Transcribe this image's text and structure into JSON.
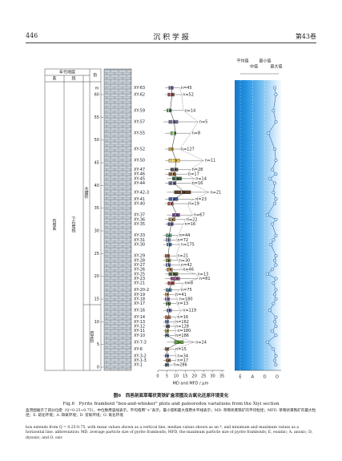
{
  "header": {
    "page": "446",
    "journal": "沉 积 学 报",
    "volume": "第43卷"
  },
  "figure": {
    "strat_header": {
      "group": "年代地层",
      "col1": "系",
      "col2": "统",
      "col3": "阶"
    },
    "strat": {
      "system": "石炭系",
      "series": "下石炭统",
      "stage_upper": "大塘阶",
      "stage_lower": "岩关阶"
    },
    "depth_unit": "m",
    "ylim": [
      0,
      60
    ],
    "yticks": [
      0,
      5,
      10,
      15,
      20,
      25,
      30,
      35,
      40,
      45,
      50,
      55,
      60
    ],
    "xlim": [
      0,
      35
    ],
    "xticks": [
      0,
      5,
      10,
      15,
      20,
      25,
      30,
      35
    ],
    "x_label": "MD and MFD / μm",
    "redox_lim": [
      0,
      3
    ],
    "redox_ticks": [
      {
        "value": 0,
        "label": "E"
      },
      {
        "value": 1,
        "label": "A"
      },
      {
        "value": 2,
        "label": "D"
      },
      {
        "value": 3,
        "label": "O"
      }
    ],
    "legend": [
      "平均值",
      "中值",
      "最小值",
      "最大值"
    ],
    "samples": [
      {
        "id": "XY-63",
        "d": 61.5,
        "min": 4,
        "q1": 6,
        "med": 7,
        "q3": 8.5,
        "max": 12,
        "mean": 7.5,
        "n": "n=45",
        "color": "#6b5a9a",
        "redox": 2.8
      },
      {
        "id": "XY-62",
        "d": 60,
        "min": 4,
        "q1": 5.5,
        "med": 7,
        "q3": 9,
        "max": 13,
        "mean": 7.8,
        "n": "n=52",
        "color": "#8a4a4a",
        "redox": 2.9
      },
      {
        "id": "XY-59",
        "d": 56.5,
        "min": 3,
        "q1": 5,
        "med": 6,
        "q3": 7.5,
        "max": 14,
        "mean": 6.8,
        "n": "n=14",
        "color": "#4a8a5a",
        "redox": 2.7
      },
      {
        "id": "XY-57",
        "d": 54,
        "min": 3,
        "q1": 6,
        "med": 8,
        "q3": 11,
        "max": 22,
        "mean": 9,
        "n": "n=5",
        "color": "#6a6a9a",
        "redox": 2.9
      },
      {
        "id": "XY-55",
        "d": 51.5,
        "min": 4,
        "q1": 7,
        "med": 8.5,
        "q3": 10,
        "max": 18,
        "mean": 9.5,
        "n": "n=8",
        "color": "#7ab06a",
        "redox": 2.3
      },
      {
        "id": "XY-52",
        "d": 48,
        "min": 4,
        "q1": 6,
        "med": 7.5,
        "q3": 8.5,
        "max": 12,
        "mean": 7.7,
        "n": "n=127",
        "color": "#c0a040",
        "redox": 2.8
      },
      {
        "id": "XY-50",
        "d": 45.5,
        "min": 4,
        "q1": 6,
        "med": 8,
        "q3": 12,
        "max": 25,
        "mean": 10,
        "n": "n=11",
        "color": "#e0c050",
        "redox": 2.9
      },
      {
        "id": "XY-47",
        "d": 43.5,
        "min": 4,
        "q1": 7,
        "med": 9,
        "q3": 11,
        "max": 18,
        "mean": 9.5,
        "n": "n=28",
        "color": "#505050",
        "redox": 2.6
      },
      {
        "id": "XY-46",
        "d": 42.5,
        "min": 4,
        "q1": 6,
        "med": 8,
        "q3": 10,
        "max": 16,
        "mean": 8.5,
        "n": "n=17",
        "color": "#8a6030",
        "redox": 2.9
      },
      {
        "id": "XY-45",
        "d": 41.5,
        "min": 5,
        "q1": 8,
        "med": 10,
        "q3": 13,
        "max": 20,
        "mean": 11,
        "n": "n=14",
        "color": "#306040",
        "redox": 2.4
      },
      {
        "id": "XY-44",
        "d": 40.5,
        "min": 4,
        "q1": 6,
        "med": 8,
        "q3": 10,
        "max": 18,
        "mean": 9,
        "n": "n=16",
        "color": "#606090",
        "redox": 2.8
      },
      {
        "id": "XY-42-3",
        "d": 38.5,
        "min": 5,
        "q1": 9,
        "med": 13,
        "q3": 18,
        "max": 28,
        "mean": 14.5,
        "n": "n=21",
        "color": "#5a4030",
        "redox": 2.7
      },
      {
        "id": "XY-41",
        "d": 37,
        "min": 4,
        "q1": 6,
        "med": 8,
        "q3": 11,
        "max": 20,
        "mean": 9,
        "n": "n=23",
        "color": "#4060a0",
        "redox": 2.9
      },
      {
        "id": "XY-40",
        "d": 36,
        "min": 4,
        "q1": 5.5,
        "med": 7,
        "q3": 8.5,
        "max": 16,
        "mean": 7.5,
        "n": "n=19",
        "color": "#a05050",
        "redox": 2.8
      },
      {
        "id": "XY-37",
        "d": 33.5,
        "min": 5,
        "q1": 8,
        "med": 10,
        "q3": 12,
        "max": 19,
        "mean": 10.5,
        "n": "n=67",
        "color": "#6a4a8a",
        "redox": 2.2
      },
      {
        "id": "XY-36",
        "d": 32.5,
        "min": 4,
        "q1": 6,
        "med": 7.5,
        "q3": 9.5,
        "max": 15,
        "mean": 8,
        "n": "n=22",
        "color": "#a08050",
        "redox": 2.9
      },
      {
        "id": "XY-35",
        "d": 31.5,
        "min": 4,
        "q1": 5.5,
        "med": 7,
        "q3": 8.5,
        "max": 14,
        "mean": 7.4,
        "n": "n=16",
        "color": "#505080",
        "redox": 2.6
      },
      {
        "id": "XY-33",
        "d": 29,
        "min": 3,
        "q1": 4.5,
        "med": 6,
        "q3": 7.5,
        "max": 11,
        "mean": 6.2,
        "n": "n=44",
        "color": "#60a080",
        "redox": 2.9
      },
      {
        "id": "XY-31",
        "d": 28,
        "min": 3,
        "q1": 4.5,
        "med": 5.5,
        "q3": 7,
        "max": 10,
        "mean": 5.8,
        "n": "n=72",
        "color": "#8090c0",
        "redox": 2.7
      },
      {
        "id": "XY-30",
        "d": 27,
        "min": 3,
        "q1": 5,
        "med": 6,
        "q3": 7.5,
        "max": 12,
        "mean": 6.4,
        "n": "n=175",
        "color": "#4070a0",
        "redox": 2.5
      },
      {
        "id": "XY-29",
        "d": 24.5,
        "min": 3,
        "q1": 4,
        "med": 5.5,
        "q3": 6.5,
        "max": 10,
        "mean": 5.6,
        "n": "n=21",
        "color": "#a06040",
        "redox": 2.9
      },
      {
        "id": "XY-28",
        "d": 23.5,
        "min": 3,
        "q1": 4.5,
        "med": 6,
        "q3": 7,
        "max": 11,
        "mean": 6,
        "n": "n=30",
        "color": "#7a8a40",
        "redox": 2.8
      },
      {
        "id": "XY-27",
        "d": 22.5,
        "min": 3,
        "q1": 4.5,
        "med": 5.5,
        "q3": 7,
        "max": 12,
        "mean": 6,
        "n": "n=42",
        "color": "#6070b0",
        "redox": 2.9
      },
      {
        "id": "XY-26",
        "d": 21.5,
        "min": 4,
        "q1": 5,
        "med": 6.5,
        "q3": 8,
        "max": 13,
        "mean": 6.8,
        "n": "n=46",
        "color": "#c08040",
        "redox": 2.6
      },
      {
        "id": "XY-25",
        "d": 20.5,
        "min": 4,
        "q1": 6,
        "med": 8,
        "q3": 11,
        "max": 21,
        "mean": 9,
        "n": "n=13",
        "color": "#506030",
        "redox": 2.2
      },
      {
        "id": "XY-23",
        "d": 19.5,
        "min": 4,
        "q1": 7,
        "med": 10,
        "q3": 12,
        "max": 22,
        "mean": 10.5,
        "n": "n=81",
        "color": "#8a5080",
        "redox": 2.9
      },
      {
        "id": "XY-21",
        "d": 18.5,
        "min": 4,
        "q1": 5.5,
        "med": 7,
        "q3": 9,
        "max": 14,
        "mean": 7.5,
        "n": "n=8",
        "color": "#a04040",
        "redox": 2.7
      },
      {
        "id": "XY-20-2",
        "d": 17,
        "min": 3,
        "q1": 4.5,
        "med": 6,
        "q3": 7.5,
        "max": 12,
        "mean": 6.2,
        "n": "n=75",
        "color": "#5080a0",
        "redox": 2.9
      },
      {
        "id": "XY-19",
        "d": 16,
        "min": 3,
        "q1": 4,
        "med": 5,
        "q3": 6,
        "max": 9,
        "mean": 5.2,
        "n": "n=41",
        "color": "#c0a060",
        "redox": 2.8
      },
      {
        "id": "XY-18",
        "d": 15,
        "min": 3,
        "q1": 4,
        "med": 5,
        "q3": 6.5,
        "max": 11,
        "mean": 5.5,
        "n": "n=180",
        "color": "#9070b0",
        "redox": 2.9
      },
      {
        "id": "XY-17",
        "d": 14,
        "min": 3,
        "q1": 4.5,
        "med": 5.5,
        "q3": 7,
        "max": 10,
        "mean": 5.8,
        "n": "n=13",
        "color": "#4a7a4a",
        "redox": 2.7
      },
      {
        "id": "XY-16",
        "d": 12.5,
        "min": 3,
        "q1": 5,
        "med": 6,
        "q3": 7.5,
        "max": 13,
        "mean": 6.3,
        "n": "n=119",
        "color": "#6a6aa0",
        "redox": 2.4
      },
      {
        "id": "XY-14",
        "d": 11,
        "min": 3,
        "q1": 4,
        "med": 5.5,
        "q3": 7,
        "max": 10,
        "mean": 5.6,
        "n": "n=16",
        "color": "#b07050",
        "redox": 2.9
      },
      {
        "id": "XY-13",
        "d": 10,
        "min": 3,
        "q1": 4,
        "med": 5,
        "q3": 6,
        "max": 9,
        "mean": 5.1,
        "n": "n=162",
        "color": "#7090c0",
        "redox": 2.8
      },
      {
        "id": "XY-12",
        "d": 9,
        "min": 3,
        "q1": 4.5,
        "med": 5.5,
        "q3": 6.5,
        "max": 9,
        "mean": 5.5,
        "n": "n=128",
        "color": "#5a5a5a",
        "redox": 2.9
      },
      {
        "id": "XY-11",
        "d": 8,
        "min": 3,
        "q1": 4,
        "med": 5,
        "q3": 6,
        "max": 10,
        "mean": 5.3,
        "n": "n=180",
        "color": "#a0a040",
        "redox": 2.6
      },
      {
        "id": "XY-10",
        "d": 7,
        "min": 3,
        "q1": 4,
        "med": 5,
        "q3": 6,
        "max": 9,
        "mean": 5,
        "n": "n=186",
        "color": "#6080a0",
        "redox": 2.9
      },
      {
        "id": "XY-7-3",
        "d": 5.5,
        "min": 5,
        "q1": 9,
        "med": 12,
        "q3": 14,
        "max": 20,
        "mean": 12,
        "n": "n=24",
        "color": "#60a040",
        "redox": 2.2
      },
      {
        "id": "XY-6",
        "d": 4,
        "min": 3,
        "q1": 4,
        "med": 5,
        "q3": 6,
        "max": 9,
        "mean": 5.1,
        "n": "n=15",
        "color": "#9a6a40",
        "redox": 2.7
      },
      {
        "id": "XY-3-2",
        "d": 2.5,
        "min": 3,
        "q1": 4,
        "med": 5,
        "q3": 6,
        "max": 10,
        "mean": 5.2,
        "n": "n=34",
        "color": "#5a70a0",
        "redox": 2.9
      },
      {
        "id": "XY-1-3",
        "d": 1.5,
        "min": 3,
        "q1": 4.5,
        "med": 5.5,
        "q3": 7,
        "max": 10,
        "mean": 5.8,
        "n": "n=17",
        "color": "#806040",
        "redox": 2.8
      },
      {
        "id": "XY-1",
        "d": 0.5,
        "min": 3,
        "q1": 4,
        "med": 5,
        "q3": 6,
        "max": 8,
        "mean": 4.9,
        "n": "n=286",
        "color": "#4a6a8a",
        "redox": 2.9
      }
    ]
  },
  "caption": {
    "cn": "图6　西邑剖面草莓状黄铁矿盒须图及古氧化还原环境变化",
    "en": "Fig.6　Pyrite framboid \"box-and-whisker\" plots and paleoredox variations from the Xiyi section"
  },
  "notes": {
    "cn": "盒须图展示了四分位距（Q=0.25~0.75），中位数用竖线表示，平均值用“+”表示，最小值和最大值用水平线表示；MD. 草莓状黄铁矿的平均粒径；MFD. 草莓状黄铁矿的最大粒径；E. 硫化环境；A. 缺氧环境；D. 贫氧环境；O. 氧化环境",
    "en": "box extends from Q = 0.25-0.75, with mean values shown as a vertical line, median values shown as an *, and minimum and maximum values as a horizontal line. abbreviation: MD, average particle size of pyrite framboids; MFD, the maximum particle size of pyrite framboids; E, euxinic; A, anoxic; D, dysoxic; and O, oxic"
  }
}
